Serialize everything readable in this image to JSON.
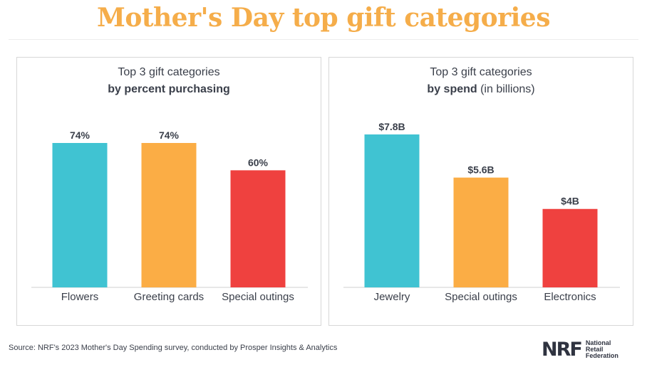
{
  "title": "Mother's Day top gift categories",
  "source": "Source: NRF's 2023 Mother's Day Spending survey, conducted by Prosper Insights & Analytics",
  "logo": {
    "mark": "NRF",
    "line1": "National",
    "line2": "Retail",
    "line3": "Federation"
  },
  "chart_data": [
    {
      "type": "bar",
      "title_line1": "Top 3 gift categories",
      "title_bold": "by percent purchasing",
      "title_suffix": "",
      "categories": [
        "Flowers",
        "Greeting cards",
        "Special outings"
      ],
      "values": [
        74,
        74,
        60
      ],
      "value_labels": [
        "74%",
        "74%",
        "60%"
      ],
      "colors": [
        "#40c3d2",
        "#fbad45",
        "#ef413f"
      ],
      "ylim": [
        0,
        100
      ],
      "grid": false,
      "legend": "none"
    },
    {
      "type": "bar",
      "title_line1": "Top 3 gift categories",
      "title_bold": "by spend",
      "title_suffix": " (in billions)",
      "categories": [
        "Jewelry",
        "Special outings",
        "Electronics"
      ],
      "values": [
        7.8,
        5.6,
        4.0
      ],
      "value_labels": [
        "$7.8B",
        "$5.6B",
        "$4B"
      ],
      "colors": [
        "#40c3d2",
        "#fbad45",
        "#ef413f"
      ],
      "ylim": [
        0,
        10
      ],
      "grid": false,
      "legend": "none"
    }
  ]
}
